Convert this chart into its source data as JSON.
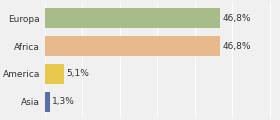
{
  "categories": [
    "Europa",
    "Africa",
    "America",
    "Asia"
  ],
  "values": [
    46.8,
    46.8,
    5.1,
    1.3
  ],
  "labels": [
    "46,8%",
    "46,8%",
    "5,1%",
    "1,3%"
  ],
  "bar_colors": [
    "#a8bc8a",
    "#e8b98a",
    "#e8c84a",
    "#5a6faa"
  ],
  "background_color": "#f0f0f0",
  "xlim": [
    0,
    62
  ],
  "bar_height": 0.72,
  "label_fontsize": 6.5,
  "category_fontsize": 6.5,
  "grid_color": "#ffffff",
  "grid_ticks": [
    0,
    10,
    20,
    30,
    40,
    50,
    60
  ]
}
